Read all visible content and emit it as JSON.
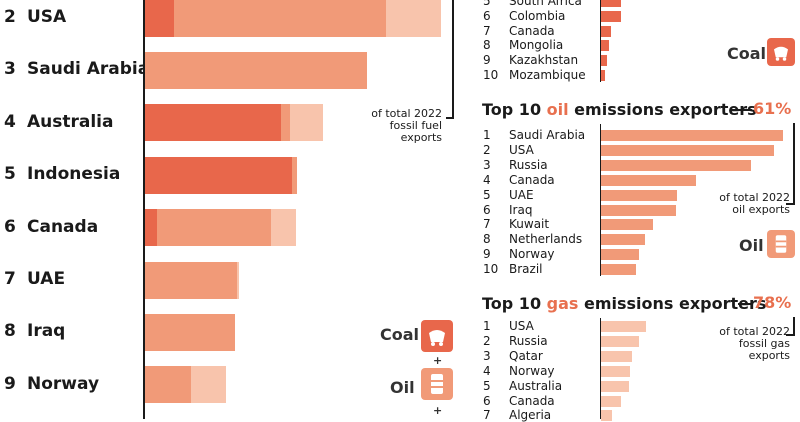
{
  "colors": {
    "coal": "#e8674b",
    "oil": "#f19a78",
    "gas": "#f8c4ac"
  },
  "main_chart": {
    "rows": [
      {
        "rank": "2",
        "country": "USA",
        "coal": 29,
        "oil": 212,
        "gas": 55
      },
      {
        "rank": "3",
        "country": "Saudi Arabia",
        "coal": 0,
        "oil": 222,
        "gas": 0
      },
      {
        "rank": "4",
        "country": "Australia",
        "coal": 136,
        "oil": 9,
        "gas": 33
      },
      {
        "rank": "5",
        "country": "Indonesia",
        "coal": 147,
        "oil": 5,
        "gas": 0
      },
      {
        "rank": "6",
        "country": "Canada",
        "coal": 12,
        "oil": 114,
        "gas": 25
      },
      {
        "rank": "7",
        "country": "UAE",
        "coal": 0,
        "oil": 92,
        "gas": 2
      },
      {
        "rank": "8",
        "country": "Iraq",
        "coal": 0,
        "oil": 90,
        "gas": 0
      },
      {
        "rank": "9",
        "country": "Norway",
        "coal": 0,
        "oil": 46,
        "gas": 35
      }
    ],
    "note": [
      "of total 2022",
      "fossil fuel",
      "exports"
    ],
    "legend": {
      "coal": "Coal",
      "oil": "Oil",
      "plus": "+"
    }
  },
  "coal_panel": {
    "label": "Coal",
    "ranks": [
      "5",
      "6",
      "7",
      "8",
      "9",
      "10"
    ],
    "countries": [
      "South Africa",
      "Colombia",
      "Canada",
      "Mongolia",
      "Kazakhstan",
      "Mozambique"
    ],
    "values": [
      20,
      20,
      10,
      8,
      6,
      4
    ]
  },
  "oil_panel": {
    "title_pre": "Top 10 ",
    "title_bold": "oil",
    "title_post": " emissions exporters",
    "pct": "61%",
    "note": [
      "of total 2022",
      "oil exports"
    ],
    "label": "Oil",
    "ranks": [
      "1",
      "2",
      "3",
      "4",
      "5",
      "6",
      "7",
      "8",
      "9",
      "10"
    ],
    "countries": [
      "Saudi Arabia",
      "USA",
      "Russia",
      "Canada",
      "UAE",
      "Iraq",
      "Kuwait",
      "Netherlands",
      "Norway",
      "Brazil"
    ],
    "values": [
      182,
      173,
      150,
      95,
      76,
      75,
      52,
      44,
      38,
      35
    ]
  },
  "gas_panel": {
    "title_pre": "Top 10 ",
    "title_bold": "gas",
    "title_post": " emissions exporters",
    "pct": "78%",
    "note": [
      "of total 2022",
      "fossil gas",
      "exports"
    ],
    "ranks": [
      "1",
      "2",
      "3",
      "4",
      "5",
      "6",
      "7"
    ],
    "countries": [
      "USA",
      "Russia",
      "Qatar",
      "Norway",
      "Australia",
      "Canada",
      "Algeria"
    ],
    "values": [
      45,
      38,
      31,
      29,
      28,
      20,
      11
    ]
  }
}
